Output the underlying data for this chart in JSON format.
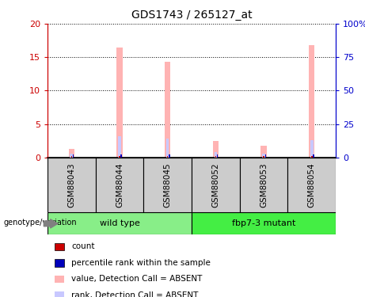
{
  "title": "GDS1743 / 265127_at",
  "samples": [
    "GSM88043",
    "GSM88044",
    "GSM88045",
    "GSM88052",
    "GSM88053",
    "GSM88054"
  ],
  "value_absent": [
    1.3,
    16.5,
    14.3,
    2.5,
    1.7,
    16.8
  ],
  "rank_absent": [
    0.6,
    3.2,
    2.8,
    0.8,
    0.6,
    2.6
  ],
  "count_red": [
    0.18,
    0.18,
    0.18,
    0.18,
    0.18,
    0.18
  ],
  "percentile_blue": [
    0.45,
    0.45,
    0.45,
    0.45,
    0.45,
    0.45
  ],
  "ylim_left": [
    0,
    20
  ],
  "ylim_right": [
    0,
    100
  ],
  "yticks_left": [
    0,
    5,
    10,
    15,
    20
  ],
  "yticks_right": [
    0,
    25,
    50,
    75,
    100
  ],
  "yticklabels_right": [
    "0",
    "25",
    "50",
    "75",
    "100%"
  ],
  "left_axis_color": "#cc0000",
  "right_axis_color": "#0000cc",
  "pink_bar_color": "#ffb3b3",
  "lavender_bar_color": "#c8c8ff",
  "red_bar_color": "#cc0000",
  "blue_bar_color": "#0000bb",
  "sample_box_color": "#cccccc",
  "wildtype_color": "#88ee88",
  "mutant_color": "#44ee44",
  "wildtype_label": "wild type",
  "mutant_label": "fbp7-3 mutant",
  "genotype_label": "genotype/variation",
  "legend_items": [
    {
      "label": "count",
      "color": "#cc0000"
    },
    {
      "label": "percentile rank within the sample",
      "color": "#0000bb"
    },
    {
      "label": "value, Detection Call = ABSENT",
      "color": "#ffb3b3"
    },
    {
      "label": "rank, Detection Call = ABSENT",
      "color": "#c8c8ff"
    }
  ]
}
